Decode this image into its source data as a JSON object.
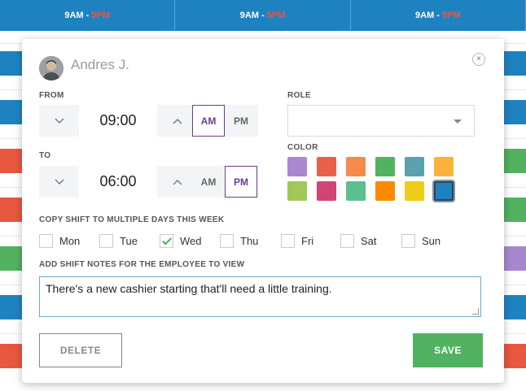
{
  "schedule_header": [
    {
      "start": "9AM - ",
      "end": "5PM"
    },
    {
      "start": "9AM - ",
      "end": "5PM"
    },
    {
      "start": "9AM - ",
      "end": "5PM"
    }
  ],
  "shift_colors": {
    "blue": "#1f82c0",
    "red": "#e8573f",
    "green": "#52b261",
    "purple": "#a987cf"
  },
  "modal": {
    "employee_name": "Andres J.",
    "close_icon": "×",
    "from": {
      "label": "FROM",
      "time": "09:00",
      "am": "AM",
      "pm": "PM",
      "selected": "AM"
    },
    "to": {
      "label": "TO",
      "time": "06:00",
      "am": "AM",
      "pm": "PM",
      "selected": "PM"
    },
    "role": {
      "label": "ROLE",
      "value": ""
    },
    "color": {
      "label": "COLOR",
      "swatches": [
        "#ab87cf",
        "#e8604a",
        "#f58a4b",
        "#52b261",
        "#5aa1ad",
        "#fbb23a",
        "#a0c95a",
        "#d14572",
        "#5cbf8e",
        "#fb8a00",
        "#f0cc1a",
        "#1f82c0"
      ],
      "selected_index": 11
    },
    "copy_days": {
      "label": "COPY SHIFT TO MULTIPLE DAYS THIS WEEK",
      "days": [
        {
          "label": "Mon",
          "checked": false
        },
        {
          "label": "Tue",
          "checked": false
        },
        {
          "label": "Wed",
          "checked": true
        },
        {
          "label": "Thu",
          "checked": false
        },
        {
          "label": "Fri",
          "checked": false
        },
        {
          "label": "Sat",
          "checked": false
        },
        {
          "label": "Sun",
          "checked": false
        }
      ]
    },
    "notes": {
      "label": "ADD SHIFT NOTES FOR THE EMPLOYEE TO VIEW",
      "value": "There's a new cashier starting that'll need a little training."
    },
    "delete_label": "DELETE",
    "save_label": "SAVE"
  }
}
